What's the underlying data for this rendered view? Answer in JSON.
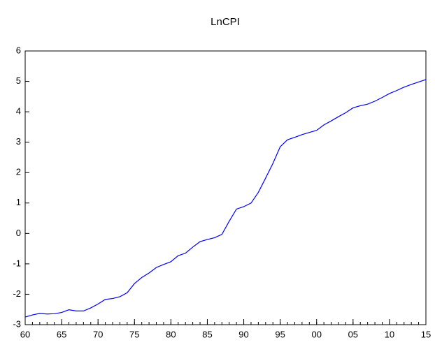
{
  "chart_data": {
    "type": "line",
    "title": "LnCPI",
    "x": [
      1960,
      1961,
      1962,
      1963,
      1964,
      1965,
      1966,
      1967,
      1968,
      1969,
      1970,
      1971,
      1972,
      1973,
      1974,
      1975,
      1976,
      1977,
      1978,
      1979,
      1980,
      1981,
      1982,
      1983,
      1984,
      1985,
      1986,
      1987,
      1988,
      1989,
      1990,
      1991,
      1992,
      1993,
      1994,
      1995,
      1996,
      1997,
      1998,
      1999,
      2000,
      2001,
      2002,
      2003,
      2004,
      2005,
      2006,
      2007,
      2008,
      2009,
      2010,
      2011,
      2012,
      2013,
      2014,
      2015
    ],
    "series": [
      {
        "name": "LnCPI",
        "color": "#0000ff",
        "values": [
          -2.75,
          -2.68,
          -2.63,
          -2.65,
          -2.64,
          -2.6,
          -2.51,
          -2.55,
          -2.55,
          -2.45,
          -2.32,
          -2.17,
          -2.14,
          -2.08,
          -1.95,
          -1.65,
          -1.45,
          -1.3,
          -1.12,
          -1.02,
          -0.93,
          -0.73,
          -0.65,
          -0.45,
          -0.27,
          -0.2,
          -0.14,
          -0.03,
          0.4,
          0.8,
          0.88,
          1.0,
          1.35,
          1.82,
          2.3,
          2.85,
          3.08,
          3.16,
          3.25,
          3.32,
          3.39,
          3.57,
          3.7,
          3.84,
          3.97,
          4.13,
          4.2,
          4.25,
          4.35,
          4.47,
          4.6,
          4.7,
          4.81,
          4.9,
          4.98,
          5.06
        ]
      }
    ],
    "xlim": [
      1960,
      2015
    ],
    "xticks": [
      {
        "value": 1960,
        "label": "60"
      },
      {
        "value": 1965,
        "label": "65"
      },
      {
        "value": 1970,
        "label": "70"
      },
      {
        "value": 1975,
        "label": "75"
      },
      {
        "value": 1980,
        "label": "80"
      },
      {
        "value": 1985,
        "label": "85"
      },
      {
        "value": 1990,
        "label": "90"
      },
      {
        "value": 1995,
        "label": "95"
      },
      {
        "value": 2000,
        "label": "00"
      },
      {
        "value": 2005,
        "label": "05"
      },
      {
        "value": 2010,
        "label": "10"
      },
      {
        "value": 2015,
        "label": "15"
      }
    ],
    "ylim": [
      -3,
      6
    ],
    "yticks": [
      -3,
      -2,
      -1,
      0,
      1,
      2,
      3,
      4,
      5,
      6
    ]
  }
}
